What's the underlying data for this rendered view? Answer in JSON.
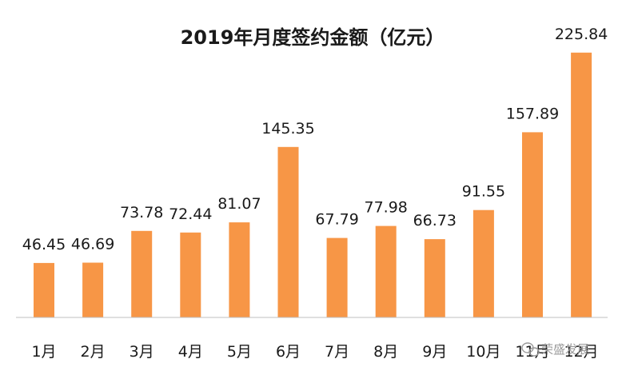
{
  "chart_data": {
    "type": "bar",
    "title": "2019年月度签约金额（亿元）",
    "categories": [
      "1月",
      "2月",
      "3月",
      "4月",
      "5月",
      "6月",
      "7月",
      "8月",
      "9月",
      "10月",
      "11月",
      "12月"
    ],
    "values": [
      46.45,
      46.69,
      73.78,
      72.44,
      81.07,
      145.35,
      67.79,
      77.98,
      66.73,
      91.55,
      157.89,
      225.84
    ],
    "value_labels": [
      "46.45",
      "46.69",
      "73.78",
      "72.44",
      "81.07",
      "145.35",
      "67.79",
      "77.98",
      "66.73",
      "91.55",
      "157.89",
      "225.84"
    ],
    "ylim": [
      0,
      240
    ],
    "grid": false,
    "bar_color": "#F79646",
    "axis_color": "#bfbfbf"
  },
  "watermark": {
    "text": "荣盛发展",
    "icon": "wechat-icon"
  }
}
